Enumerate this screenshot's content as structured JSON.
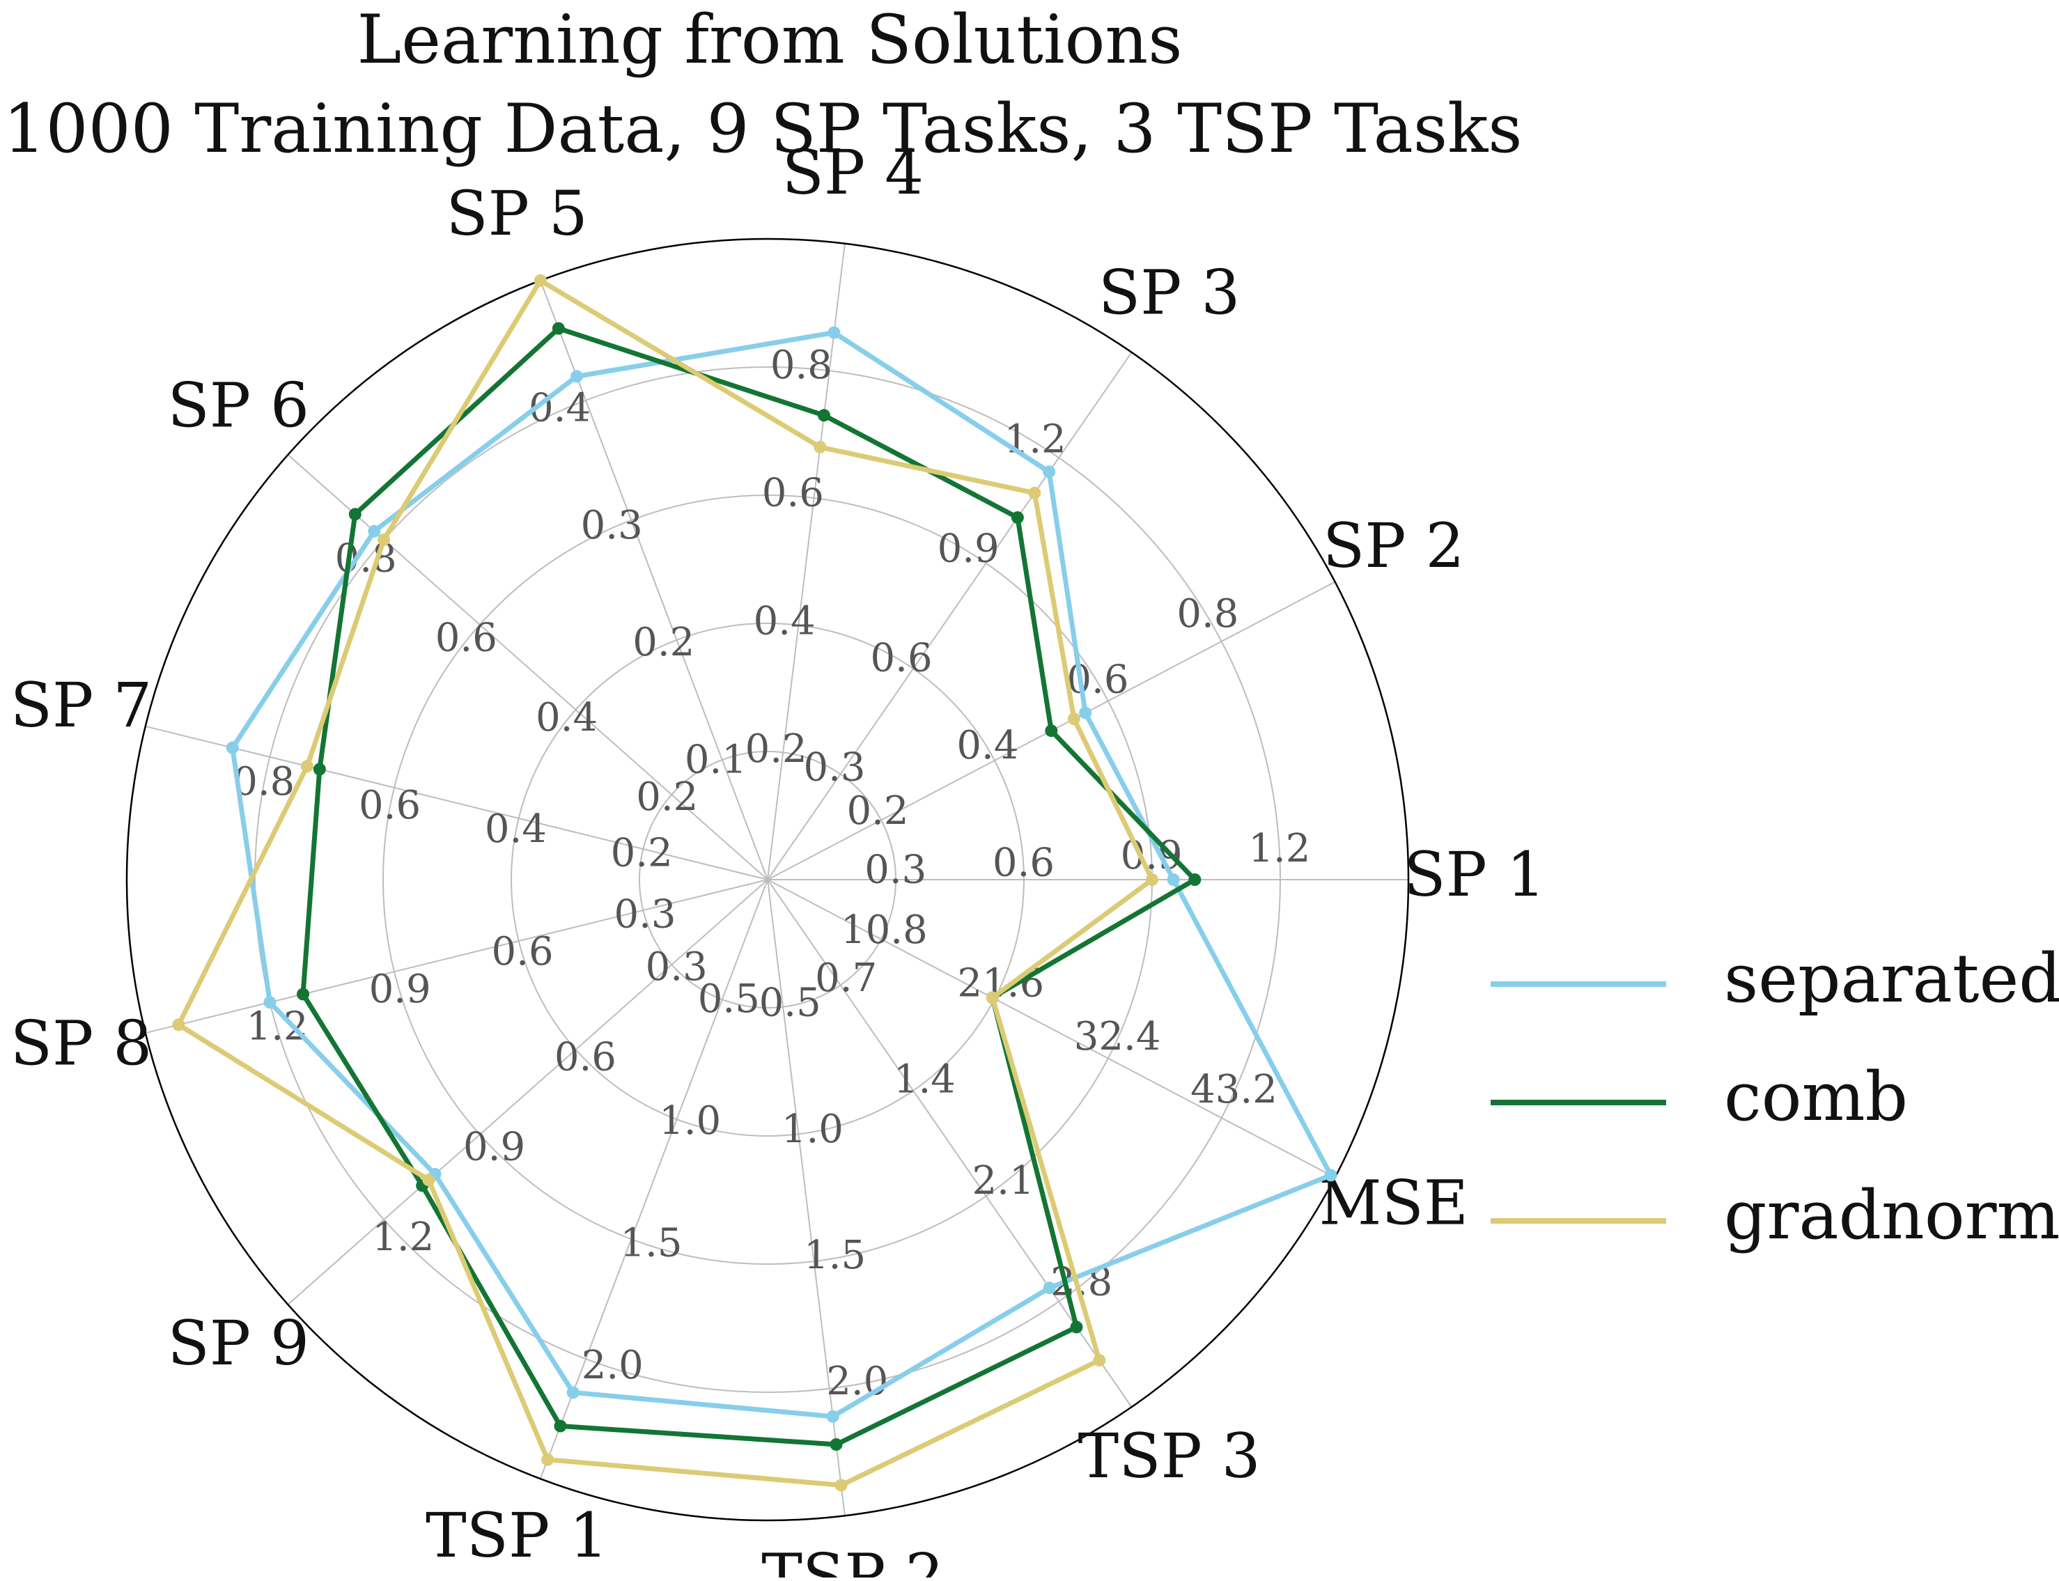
{
  "chart_data": {
    "type": "radar",
    "title": "Learning from Solutions",
    "subtitle": "1000 Training Data, 9 SP Tasks, 3 TSP Tasks",
    "axes": [
      {
        "name": "SP 1",
        "ticks": [
          "0.3",
          "0.6",
          "0.9",
          "1.2"
        ],
        "tick_values": [
          0.3,
          0.6,
          0.9,
          1.2
        ],
        "max": 1.5
      },
      {
        "name": "SP 2",
        "ticks": [
          "0.2",
          "0.4",
          "0.6",
          "0.8"
        ],
        "tick_values": [
          0.2,
          0.4,
          0.6,
          0.8
        ],
        "max": 1.0
      },
      {
        "name": "SP 3",
        "ticks": [
          "0.3",
          "0.6",
          "0.9",
          "1.2"
        ],
        "tick_values": [
          0.3,
          0.6,
          0.9,
          1.2
        ],
        "max": 1.5
      },
      {
        "name": "SP 4",
        "ticks": [
          "0.2",
          "0.4",
          "0.6",
          "0.8"
        ],
        "tick_values": [
          0.2,
          0.4,
          0.6,
          0.8
        ],
        "max": 1.0
      },
      {
        "name": "SP 5",
        "ticks": [
          "0.1",
          "0.2",
          "0.3",
          "0.4"
        ],
        "tick_values": [
          0.1,
          0.2,
          0.3,
          0.4
        ],
        "max": 0.5
      },
      {
        "name": "SP 6",
        "ticks": [
          "0.2",
          "0.4",
          "0.6",
          "0.8"
        ],
        "tick_values": [
          0.2,
          0.4,
          0.6,
          0.8
        ],
        "max": 1.0
      },
      {
        "name": "SP 7",
        "ticks": [
          "0.2",
          "0.4",
          "0.6",
          "0.8"
        ],
        "tick_values": [
          0.2,
          0.4,
          0.6,
          0.8
        ],
        "max": 1.0
      },
      {
        "name": "SP 8",
        "ticks": [
          "0.3",
          "0.6",
          "0.9",
          "1.2"
        ],
        "tick_values": [
          0.3,
          0.6,
          0.9,
          1.2
        ],
        "max": 1.5
      },
      {
        "name": "SP 9",
        "ticks": [
          "0.3",
          "0.6",
          "0.9",
          "1.2"
        ],
        "tick_values": [
          0.3,
          0.6,
          0.9,
          1.2
        ],
        "max": 1.5
      },
      {
        "name": "TSP 1",
        "ticks": [
          "0.5",
          "1.0",
          "1.5",
          "2.0"
        ],
        "tick_values": [
          0.5,
          1.0,
          1.5,
          2.0
        ],
        "max": 2.5
      },
      {
        "name": "TSP 2",
        "ticks": [
          "0.5",
          "1.0",
          "1.5",
          "2.0"
        ],
        "tick_values": [
          0.5,
          1.0,
          1.5,
          2.0
        ],
        "max": 2.5
      },
      {
        "name": "TSP 3",
        "ticks": [
          "0.7",
          "1.4",
          "2.1",
          "2.8"
        ],
        "tick_values": [
          0.7,
          1.4,
          2.1,
          2.8
        ],
        "max": 3.5
      },
      {
        "name": "MSE",
        "ticks": [
          "10.8",
          "21.6",
          "32.4",
          "43.2"
        ],
        "tick_values": [
          10.8,
          21.6,
          32.4,
          43.2
        ],
        "max": 54.0
      }
    ],
    "series": [
      {
        "name": "separated",
        "color": "#87ceeb",
        "values": [
          0.95,
          0.56,
          1.16,
          0.86,
          0.42,
          0.82,
          0.86,
          1.2,
          1.04,
          2.14,
          2.11,
          2.71,
          53.6
        ]
      },
      {
        "name": "comb",
        "color": "#137533",
        "values": [
          1.0,
          0.5,
          1.03,
          0.73,
          0.46,
          0.86,
          0.72,
          1.12,
          1.08,
          2.28,
          2.22,
          2.97,
          21.4
        ]
      },
      {
        "name": "gradnorm",
        "color": "#dccb74",
        "values": [
          0.9,
          0.54,
          1.1,
          0.68,
          0.53,
          0.8,
          0.74,
          1.42,
          1.06,
          2.42,
          2.38,
          3.19,
          21.4
        ]
      }
    ],
    "legend_position": "right",
    "grid": true
  }
}
